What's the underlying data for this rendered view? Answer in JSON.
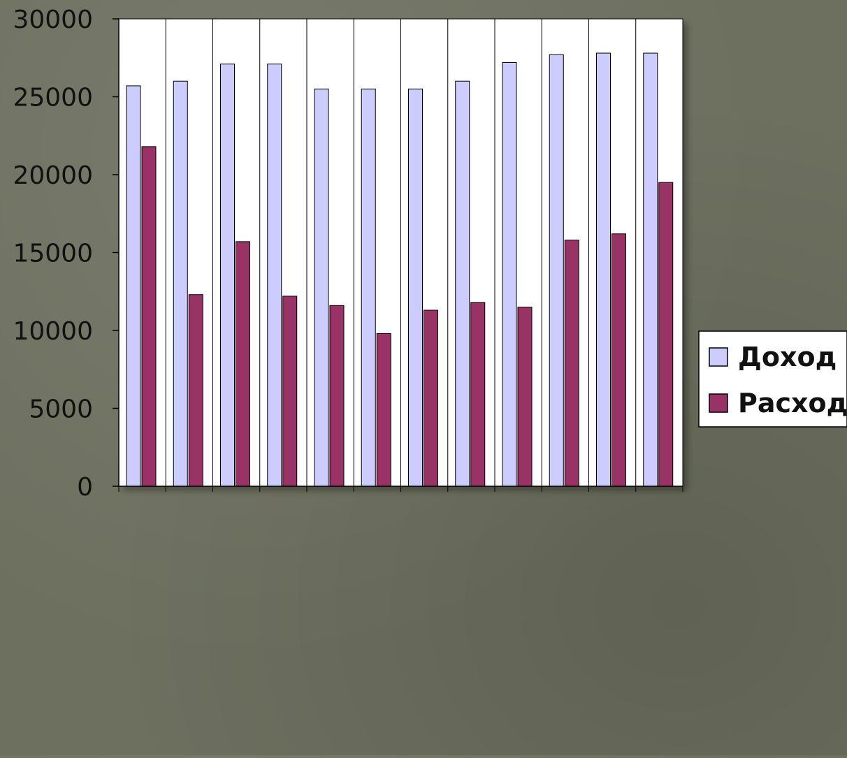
{
  "chart_data": {
    "type": "bar",
    "categories": [
      "",
      "",
      "",
      "",
      "",
      "",
      "",
      "",
      "",
      "",
      "",
      ""
    ],
    "series": [
      {
        "name": "Доход",
        "color": "#ccccff",
        "values": [
          25700,
          26000,
          27100,
          27100,
          25500,
          25500,
          25500,
          26000,
          27200,
          27700,
          27800,
          27800
        ]
      },
      {
        "name": "Расход",
        "color": "#993366",
        "values": [
          21800,
          12300,
          15700,
          12200,
          11600,
          9800,
          11300,
          11800,
          11500,
          15800,
          16200,
          19500
        ]
      }
    ],
    "ylim": [
      0,
      30000
    ],
    "yticks": [
      "0",
      "5000",
      "10000",
      "15000",
      "20000",
      "25000",
      "30000"
    ],
    "grid": "vertical category separators",
    "legend_position": "right"
  }
}
